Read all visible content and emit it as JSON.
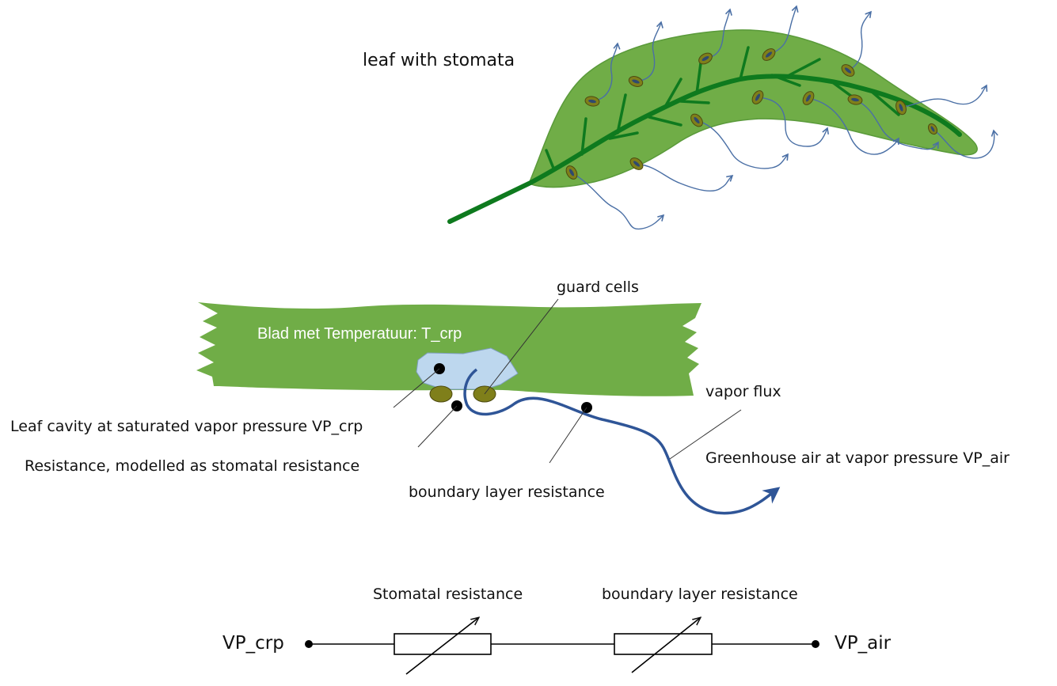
{
  "leaf": {
    "title": "leaf with stomata"
  },
  "cross_section": {
    "leaf_label": "Blad met Temperatuur: T_crp",
    "guard_cells": "guard cells",
    "vapor_flux": "vapor flux",
    "leaf_cavity": "Leaf cavity at saturated vapor pressure VP_crp",
    "stomatal_res": "Resistance, modelled as stomatal resistance",
    "boundary_res": "boundary layer resistance",
    "greenhouse_air": "Greenhouse air at vapor pressure VP_air"
  },
  "circuit": {
    "left_node": "VP_crp",
    "right_node": "VP_air",
    "resistor1_label": "Stomatal resistance",
    "resistor2_label": "boundary layer resistance"
  },
  "colors": {
    "leaf_green": "#70ad47",
    "vein_green": "#0e7a1e",
    "stoma_olive": "#7f7f1a",
    "vapor_blue": "#4a6fa5",
    "flux_blue": "#2f5597",
    "cavity_blue": "#bdd7ee"
  }
}
